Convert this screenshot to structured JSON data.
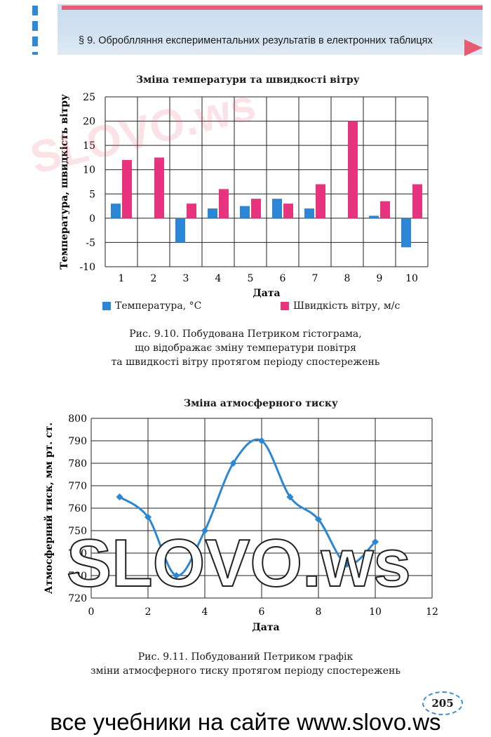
{
  "header": {
    "section_title": "§ 9. Оброблляння експериментальних результатів в електронних таблицях"
  },
  "figure1": {
    "caption_lines": [
      "Рис. 9.10. Побудована Петриком гістограма,",
      "що відображає зміну температури повітря",
      "та швидкості вітру протягом періоду спостережень"
    ]
  },
  "figure2": {
    "caption_lines": [
      "Рис. 9.11. Побудований Петриком графік",
      "зміни атмосферного тиску протягом періоду спостережень"
    ]
  },
  "page_number": "205",
  "footer_text": "все учебники на сайте www.slovo.ws",
  "watermark": "SLOVO.ws",
  "colors": {
    "temperature": "#2b86d6",
    "wind": "#e8337f",
    "line": "#2b86d6",
    "accent_pink": "#e85c73"
  },
  "chart_data": [
    {
      "type": "bar",
      "title": "Зміна температури та швидкості вітру",
      "xlabel": "Дата",
      "ylabel": "Температура, швидкість вітру",
      "categories": [
        "1",
        "2",
        "3",
        "4",
        "5",
        "6",
        "7",
        "8",
        "9",
        "10"
      ],
      "series": [
        {
          "name": "Температура, °C",
          "values": [
            3,
            0,
            -5,
            2,
            2.5,
            4,
            2,
            0,
            0.5,
            -6
          ]
        },
        {
          "name": "Швидкість вітру, м/с",
          "values": [
            12,
            12.5,
            3,
            6,
            4,
            3,
            7,
            20,
            3.5,
            7
          ]
        }
      ],
      "ylim": [
        -10,
        25
      ],
      "yticks": [
        "25",
        "20",
        "15",
        "10",
        "5",
        "0",
        "-5",
        "-10"
      ],
      "grid": true,
      "legend": "bottom"
    },
    {
      "type": "line",
      "title": "Зміна атмосферного тиску",
      "xlabel": "Дата",
      "ylabel": "Атмосферний тиск, мм рт. ст.",
      "x": [
        1,
        2,
        3,
        4,
        5,
        6,
        7,
        8,
        9,
        10
      ],
      "y": [
        765,
        756,
        730,
        750,
        780,
        790,
        765,
        755,
        735,
        745
      ],
      "xlim": [
        0,
        12
      ],
      "ylim": [
        720,
        800
      ],
      "xticks": [
        "0",
        "2",
        "4",
        "6",
        "8",
        "10",
        "12"
      ],
      "yticks": [
        "800",
        "790",
        "780",
        "770",
        "760",
        "750",
        "740",
        "730",
        "720"
      ],
      "grid": true,
      "smooth": true,
      "marker": "diamond"
    }
  ]
}
